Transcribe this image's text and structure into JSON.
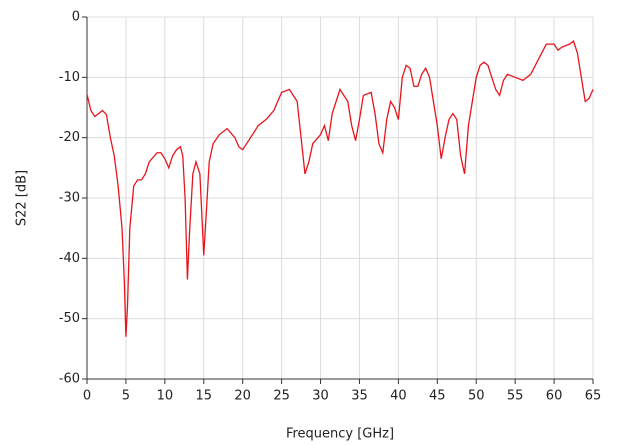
{
  "chart_data": {
    "type": "line",
    "x_label": "Frequency [GHz]",
    "y_label": "S22 [dB]",
    "x": [
      0,
      0.5,
      1,
      1.5,
      2,
      2.5,
      3,
      3.5,
      4,
      4.5,
      4.8,
      5.0,
      5.2,
      5.5,
      6,
      6.5,
      7,
      7.5,
      8,
      9,
      9.5,
      10,
      10.5,
      11,
      11.5,
      12,
      12.3,
      12.6,
      12.9,
      13.2,
      13.6,
      14,
      14.5,
      15,
      15.3,
      15.7,
      16.2,
      17,
      18,
      19,
      19.5,
      20,
      21,
      22,
      23,
      24,
      25,
      26,
      27,
      27.5,
      28,
      28.5,
      29,
      30,
      30.5,
      31,
      31.5,
      32.5,
      33.5,
      34,
      34.5,
      35,
      35.5,
      36.5,
      37,
      37.5,
      38,
      38.5,
      39,
      39.5,
      40,
      40.5,
      41,
      41.5,
      42,
      42.5,
      43,
      43.5,
      44,
      44.5,
      45,
      45.5,
      46,
      46.5,
      47,
      47.5,
      48,
      48.5,
      49,
      50,
      50.5,
      51,
      51.5,
      52,
      52.5,
      53,
      53.5,
      54,
      55,
      56,
      57,
      58,
      59,
      60,
      60.5,
      61,
      62,
      62.5,
      63,
      63.5,
      64,
      64.5,
      65
    ],
    "series": [
      {
        "name": "S22",
        "color": "#e8141b",
        "values": [
          -12.8,
          -15.5,
          -16.5,
          -16,
          -15.5,
          -16.2,
          -20,
          -23,
          -28,
          -35,
          -44,
          -53,
          -48,
          -35,
          -28,
          -27,
          -27,
          -26,
          -24,
          -22.5,
          -22.5,
          -23.5,
          -25,
          -23,
          -22,
          -21.5,
          -23,
          -30,
          -43.5,
          -35,
          -26,
          -24,
          -26,
          -39.5,
          -33,
          -24,
          -21,
          -19.5,
          -18.5,
          -20,
          -21.5,
          -22,
          -20,
          -18,
          -17,
          -15.5,
          -12.5,
          -12,
          -14,
          -20,
          -26,
          -24,
          -21,
          -19.5,
          -18,
          -20.5,
          -16,
          -12,
          -14,
          -18,
          -20.5,
          -17,
          -13,
          -12.5,
          -16,
          -21,
          -22.5,
          -17,
          -14,
          -15,
          -17,
          -10,
          -8,
          -8.5,
          -11.5,
          -11.5,
          -9.5,
          -8.5,
          -10,
          -14,
          -18,
          -23.5,
          -20,
          -17,
          -16,
          -17,
          -23,
          -26,
          -18,
          -10,
          -8,
          -7.5,
          -8,
          -10,
          -12,
          -13,
          -10.5,
          -9.5,
          -10,
          -10.5,
          -9.5,
          -7,
          -4.5,
          -4.5,
          -5.5,
          -5,
          -4.5,
          -4,
          -6,
          -10,
          -14,
          -13.5,
          -12
        ]
      }
    ],
    "xlim": [
      0,
      65
    ],
    "xticks": [
      0,
      5,
      10,
      15,
      20,
      25,
      30,
      35,
      40,
      45,
      50,
      55,
      60,
      65
    ],
    "ylim": [
      -60,
      0
    ],
    "yticks": [
      0,
      -10,
      -20,
      -30,
      -40,
      -50,
      -60
    ],
    "grid": true
  }
}
